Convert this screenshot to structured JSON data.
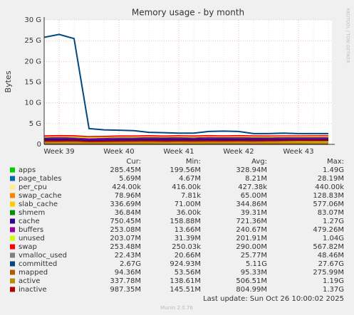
{
  "chart_data": {
    "type": "line",
    "title": "Memory usage - by month",
    "y_label": "Bytes",
    "side_text": "RRDTOOL / TOBI OETIKER",
    "categories": [
      null,
      "Week 39",
      null,
      null,
      null,
      "Week 40",
      null,
      null,
      null,
      "Week 41",
      null,
      null,
      null,
      "Week 42",
      null,
      null,
      null,
      "Week 43",
      null,
      null
    ],
    "ylim": [
      0,
      30
    ],
    "yticks": [
      {
        "value": 0,
        "label": "0"
      },
      {
        "value": 5,
        "label": "5 G"
      },
      {
        "value": 10,
        "label": "10 G"
      },
      {
        "value": 15,
        "label": "15 G"
      },
      {
        "value": 20,
        "label": "20 G"
      },
      {
        "value": 25,
        "label": "25 G"
      },
      {
        "value": 30,
        "label": "30 G"
      }
    ],
    "grid": true,
    "series": [
      {
        "name": "apps",
        "color": "#00cc00",
        "stack": true,
        "values": [
          0.3,
          0.31,
          0.3,
          0.25,
          0.27,
          0.28,
          0.26,
          0.3,
          0.29,
          0.28,
          0.27,
          0.3,
          0.31,
          0.29,
          0.28,
          0.27,
          0.29,
          0.3,
          0.28,
          0.28
        ]
      },
      {
        "name": "page_tables",
        "color": "#0066b3",
        "stack": true,
        "values": [
          0.02,
          0.02,
          0.02,
          0.01,
          0.01,
          0.01,
          0.01,
          0.01,
          0.01,
          0.01,
          0.01,
          0.01,
          0.01,
          0.01,
          0.01,
          0.01,
          0.01,
          0.01,
          0.01,
          0.01
        ]
      },
      {
        "name": "per_cpu",
        "color": "#ffee88",
        "stack": true,
        "values": [
          0.0004,
          0.0004,
          0.0004,
          0.0004,
          0.0004,
          0.0004,
          0.0004,
          0.0004,
          0.0004,
          0.0004,
          0.0004,
          0.0004,
          0.0004,
          0.0004,
          0.0004,
          0.0004,
          0.0004,
          0.0004,
          0.0004,
          0.0004
        ]
      },
      {
        "name": "swap_cache",
        "color": "#ff8000",
        "stack": true,
        "values": [
          0.05,
          0.06,
          0.07,
          0.04,
          0.05,
          0.06,
          0.07,
          0.06,
          0.07,
          0.08,
          0.06,
          0.07,
          0.06,
          0.07,
          0.06,
          0.07,
          0.08,
          0.07,
          0.08,
          0.08
        ]
      },
      {
        "name": "slab_cache",
        "color": "#ffcc00",
        "stack": true,
        "values": [
          0.35,
          0.36,
          0.34,
          0.33,
          0.34,
          0.35,
          0.33,
          0.34,
          0.35,
          0.34,
          0.33,
          0.35,
          0.34,
          0.35,
          0.34,
          0.33,
          0.34,
          0.35,
          0.34,
          0.34
        ]
      },
      {
        "name": "shmem",
        "color": "#008f00",
        "stack": true,
        "values": [
          0.04,
          0.04,
          0.04,
          0.04,
          0.04,
          0.04,
          0.04,
          0.04,
          0.04,
          0.04,
          0.04,
          0.04,
          0.04,
          0.04,
          0.04,
          0.04,
          0.04,
          0.04,
          0.04,
          0.04
        ]
      },
      {
        "name": "cache",
        "color": "#330099",
        "stack": true,
        "values": [
          0.7,
          0.72,
          0.68,
          0.6,
          0.65,
          0.7,
          0.72,
          0.74,
          0.7,
          0.73,
          0.72,
          0.74,
          0.71,
          0.73,
          0.72,
          0.74,
          0.73,
          0.72,
          0.74,
          0.75
        ]
      },
      {
        "name": "buffers",
        "color": "#990099",
        "stack": true,
        "values": [
          0.22,
          0.24,
          0.23,
          0.2,
          0.22,
          0.24,
          0.25,
          0.24,
          0.23,
          0.25,
          0.24,
          0.26,
          0.24,
          0.25,
          0.24,
          0.23,
          0.25,
          0.24,
          0.25,
          0.25
        ]
      },
      {
        "name": "unused",
        "color": "#ccff00",
        "stack": true,
        "values": [
          0.2,
          0.18,
          0.22,
          0.25,
          0.2,
          0.19,
          0.21,
          0.2,
          0.18,
          0.2,
          0.21,
          0.19,
          0.2,
          0.22,
          0.21,
          0.2,
          0.19,
          0.2,
          0.21,
          0.2
        ]
      },
      {
        "name": "swap",
        "color": "#ff0000",
        "stack": true,
        "values": [
          0.3,
          0.32,
          0.3,
          0.28,
          0.28,
          0.29,
          0.28,
          0.29,
          0.28,
          0.29,
          0.28,
          0.29,
          0.28,
          0.29,
          0.28,
          0.27,
          0.26,
          0.26,
          0.25,
          0.25
        ]
      },
      {
        "name": "vmalloc_used",
        "color": "#808080",
        "values": [
          0.03,
          0.03,
          0.03,
          0.02,
          0.02,
          0.02,
          0.02,
          0.02,
          0.02,
          0.02,
          0.02,
          0.02,
          0.02,
          0.02,
          0.02,
          0.02,
          0.02,
          0.02,
          0.02,
          0.02
        ]
      },
      {
        "name": "committed",
        "color": "#00487d",
        "values": [
          25.8,
          26.5,
          25.5,
          3.8,
          3.5,
          3.4,
          3.3,
          2.9,
          2.8,
          2.7,
          2.7,
          3.1,
          3.2,
          3.1,
          2.6,
          2.6,
          2.7,
          2.6,
          2.6,
          2.6
        ]
      },
      {
        "name": "mapped",
        "color": "#b35a00",
        "values": [
          0.1,
          0.1,
          0.1,
          0.08,
          0.09,
          0.1,
          0.09,
          0.1,
          0.09,
          0.1,
          0.09,
          0.1,
          0.09,
          0.1,
          0.09,
          0.1,
          0.09,
          0.1,
          0.09,
          0.09
        ]
      },
      {
        "name": "active",
        "color": "#b38f00",
        "values": [
          0.5,
          0.55,
          0.52,
          0.4,
          0.45,
          0.5,
          0.48,
          0.52,
          0.5,
          0.55,
          0.5,
          0.52,
          0.5,
          0.48,
          0.5,
          0.45,
          0.4,
          0.38,
          0.35,
          0.34
        ]
      },
      {
        "name": "inactive",
        "color": "#b30000",
        "values": [
          0.8,
          0.82,
          0.85,
          0.7,
          0.75,
          0.8,
          0.82,
          0.85,
          0.8,
          0.84,
          0.82,
          0.86,
          0.84,
          0.85,
          0.84,
          0.86,
          0.9,
          0.94,
          0.96,
          0.99
        ]
      }
    ],
    "legend_columns": [
      "Cur:",
      "Min:",
      "Avg:",
      "Max:"
    ],
    "legend_rows": [
      [
        "285.45M",
        "199.56M",
        "328.94M",
        "1.49G"
      ],
      [
        "5.69M",
        "4.67M",
        "8.21M",
        "28.19M"
      ],
      [
        "424.00k",
        "416.00k",
        "427.38k",
        "440.00k"
      ],
      [
        "78.96M",
        "7.81k",
        "65.00M",
        "128.83M"
      ],
      [
        "336.69M",
        "71.00M",
        "344.86M",
        "577.06M"
      ],
      [
        "36.84M",
        "36.00k",
        "39.31M",
        "83.07M"
      ],
      [
        "750.45M",
        "158.88M",
        "721.36M",
        "1.27G"
      ],
      [
        "253.08M",
        "13.66M",
        "240.67M",
        "479.26M"
      ],
      [
        "203.07M",
        "31.39M",
        "201.91M",
        "1.04G"
      ],
      [
        "253.48M",
        "250.03k",
        "290.00M",
        "567.82M"
      ],
      [
        "22.43M",
        "20.66M",
        "25.77M",
        "48.46M"
      ],
      [
        "2.67G",
        "924.93M",
        "5.11G",
        "27.67G"
      ],
      [
        "94.36M",
        "53.56M",
        "95.33M",
        "275.99M"
      ],
      [
        "337.78M",
        "138.61M",
        "506.51M",
        "1.19G"
      ],
      [
        "987.35M",
        "145.51M",
        "804.99M",
        "1.37G"
      ]
    ],
    "footer": "Last update: Sun Oct 26 10:00:02 2025",
    "version": "Munin 2.0.76"
  }
}
